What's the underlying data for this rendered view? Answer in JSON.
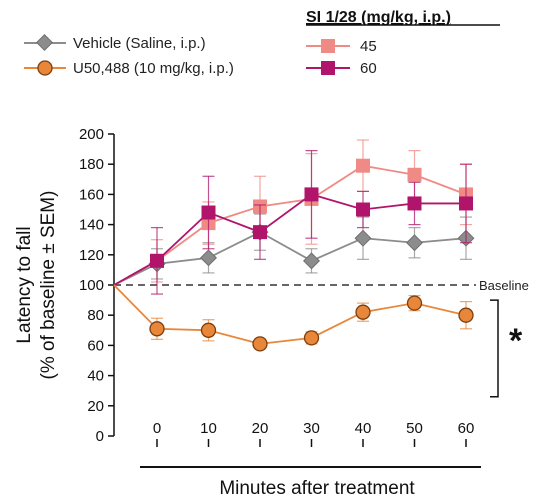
{
  "chart_data": {
    "type": "line",
    "xlabel": "Minutes after treatment",
    "ylabel_line1": "Latency to fall",
    "ylabel_line2": "(% of baseline ± SEM)",
    "ylim": [
      0,
      200
    ],
    "yticks": [
      0,
      20,
      40,
      60,
      80,
      100,
      120,
      140,
      160,
      180,
      200
    ],
    "xticks": [
      0,
      10,
      20,
      30,
      40,
      50,
      60
    ],
    "baseline_value": 100,
    "baseline_label": "Baseline",
    "significance_label": "*",
    "legend_group_title": "SI 1/28 (mg/kg, i.p.)",
    "series": [
      {
        "name": "Vehicle (Saline, i.p.)",
        "color": "#8c8c8c",
        "marker": "diamond",
        "x": [
          0,
          10,
          20,
          30,
          40,
          50,
          60
        ],
        "values": [
          114,
          118,
          135,
          116,
          131,
          128,
          131
        ],
        "errors": [
          10,
          10,
          12,
          8,
          14,
          10,
          14
        ]
      },
      {
        "name": "U50,488 (10 mg/kg, i.p.)",
        "color": "#e8873a",
        "marker": "circle",
        "x": [
          0,
          10,
          20,
          30,
          40,
          50,
          60
        ],
        "values": [
          71,
          70,
          61,
          65,
          82,
          88,
          80
        ],
        "errors": [
          7,
          7,
          3,
          4,
          6,
          5,
          9
        ]
      },
      {
        "name": "45",
        "color": "#f08a84",
        "marker": "square",
        "x": [
          0,
          10,
          20,
          30,
          40,
          50,
          60
        ],
        "values": [
          116,
          141,
          152,
          157,
          179,
          173,
          160
        ],
        "errors": [
          14,
          14,
          20,
          30,
          17,
          16,
          20
        ]
      },
      {
        "name": "60",
        "color": "#b0156b",
        "marker": "square",
        "x": [
          0,
          10,
          20,
          30,
          40,
          50,
          60
        ],
        "values": [
          116,
          148,
          135,
          160,
          150,
          154,
          154
        ],
        "errors": [
          22,
          24,
          18,
          29,
          12,
          14,
          26
        ]
      }
    ]
  }
}
